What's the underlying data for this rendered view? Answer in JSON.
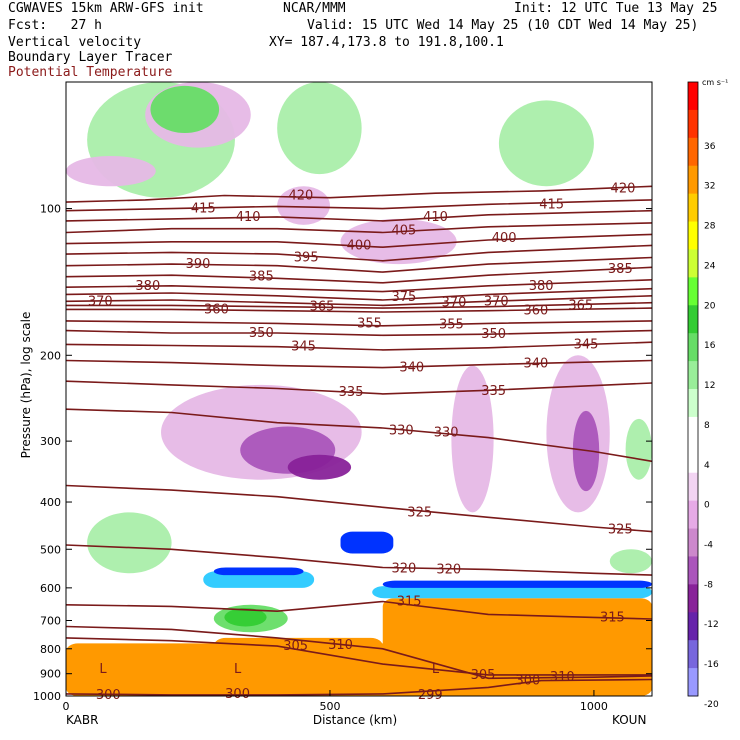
{
  "header": {
    "model": "CGWAVES 15km ARW-GFS init",
    "org": "NCAR/MMM",
    "init": "Init: 12 UTC Tue 13 May 25",
    "fcst": "Fcst:   27 h",
    "valid": "Valid: 15 UTC Wed 14 May 25 (10 CDT Wed 14 May 25)",
    "field1": "Vertical velocity",
    "field2": "Boundary Layer Tracer",
    "field3": "Potential Temperature",
    "xy": "XY= 187.4,173.8 to 191.8,100.1"
  },
  "colorbar": {
    "unit": "cm s⁻¹",
    "ticks": [
      36,
      32,
      28,
      24,
      20,
      16,
      12,
      8,
      4,
      0,
      -4,
      -8,
      -12,
      -16,
      -20
    ],
    "colors": [
      "#ff0000",
      "#ff3300",
      "#ff6600",
      "#ff9900",
      "#ffcc00",
      "#ffff00",
      "#ccff33",
      "#66ff33",
      "#33cc33",
      "#66dd66",
      "#99ee99",
      "#ccffcc",
      "#ffffff",
      "#ffffff",
      "#f2d4f2",
      "#e6aae6",
      "#cc88cc",
      "#aa55bb",
      "#882299",
      "#6622aa",
      "#7766dd",
      "#9999ff"
    ]
  },
  "chart_data": {
    "type": "cross-section",
    "title": "",
    "xlabel": "Distance (km)",
    "ylabel": "Pressure (hPa), log scale",
    "xlim": [
      0,
      1110
    ],
    "ylim": [
      1000,
      55
    ],
    "x_ticks": [
      0,
      500,
      1000
    ],
    "y_ticks": [
      100,
      200,
      300,
      400,
      500,
      600,
      700,
      800,
      900,
      1000
    ],
    "left_label": "KABR",
    "right_label": "KOUN",
    "theta_contours": [
      {
        "v": 420,
        "pts": [
          [
            0,
            97
          ],
          [
            150,
            96
          ],
          [
            300,
            94
          ],
          [
            500,
            95
          ],
          [
            700,
            93
          ],
          [
            900,
            92
          ],
          [
            1110,
            90
          ]
        ],
        "labels": [
          [
            445,
            94
          ],
          [
            1055,
            91
          ]
        ]
      },
      {
        "v": 415,
        "pts": [
          [
            0,
            101
          ],
          [
            200,
            100
          ],
          [
            400,
            99
          ],
          [
            600,
            100
          ],
          [
            800,
            98
          ],
          [
            1110,
            96
          ]
        ],
        "labels": [
          [
            260,
            100
          ],
          [
            920,
            98
          ]
        ]
      },
      {
        "v": 410,
        "pts": [
          [
            0,
            106
          ],
          [
            200,
            105
          ],
          [
            400,
            104
          ],
          [
            600,
            106
          ],
          [
            800,
            103
          ],
          [
            1110,
            101
          ]
        ],
        "labels": [
          [
            345,
            104
          ],
          [
            700,
            104
          ]
        ]
      },
      {
        "v": 405,
        "pts": [
          [
            0,
            112
          ],
          [
            200,
            110
          ],
          [
            400,
            110
          ],
          [
            600,
            112
          ],
          [
            800,
            109
          ],
          [
            1110,
            107
          ]
        ],
        "labels": [
          [
            640,
            111
          ]
        ]
      },
      {
        "v": 400,
        "pts": [
          [
            0,
            118
          ],
          [
            200,
            117
          ],
          [
            400,
            117
          ],
          [
            600,
            120
          ],
          [
            800,
            116
          ],
          [
            1110,
            113
          ]
        ],
        "labels": [
          [
            555,
            119
          ],
          [
            830,
            115
          ]
        ]
      },
      {
        "v": 395,
        "pts": [
          [
            0,
            124
          ],
          [
            200,
            123
          ],
          [
            400,
            124
          ],
          [
            600,
            128
          ],
          [
            800,
            123
          ],
          [
            1110,
            119
          ]
        ],
        "labels": [
          [
            455,
            126
          ]
        ]
      },
      {
        "v": 390,
        "pts": [
          [
            0,
            131
          ],
          [
            200,
            130
          ],
          [
            400,
            131
          ],
          [
            600,
            135
          ],
          [
            800,
            130
          ],
          [
            1110,
            126
          ]
        ],
        "labels": [
          [
            250,
            130
          ]
        ]
      },
      {
        "v": 385,
        "pts": [
          [
            0,
            138
          ],
          [
            200,
            137
          ],
          [
            400,
            139
          ],
          [
            600,
            142
          ],
          [
            800,
            137
          ],
          [
            1110,
            132
          ]
        ],
        "labels": [
          [
            370,
            138
          ],
          [
            1050,
            133
          ]
        ]
      },
      {
        "v": 380,
        "pts": [
          [
            0,
            145
          ],
          [
            200,
            144
          ],
          [
            400,
            146
          ],
          [
            600,
            148
          ],
          [
            800,
            144
          ],
          [
            1110,
            140
          ]
        ],
        "labels": [
          [
            155,
            144
          ],
          [
            900,
            144
          ]
        ]
      },
      {
        "v": 375,
        "pts": [
          [
            0,
            150
          ],
          [
            200,
            149
          ],
          [
            400,
            151
          ],
          [
            600,
            154
          ],
          [
            800,
            150
          ],
          [
            1110,
            146
          ]
        ],
        "labels": [
          [
            640,
            152
          ]
        ]
      },
      {
        "v": 370,
        "pts": [
          [
            0,
            155
          ],
          [
            200,
            154
          ],
          [
            400,
            156
          ],
          [
            600,
            158
          ],
          [
            800,
            155
          ],
          [
            1110,
            151
          ]
        ],
        "labels": [
          [
            65,
            155
          ],
          [
            735,
            156
          ],
          [
            815,
            155
          ]
        ]
      },
      {
        "v": 365,
        "pts": [
          [
            0,
            158
          ],
          [
            200,
            158
          ],
          [
            400,
            159
          ],
          [
            600,
            160
          ],
          [
            800,
            159
          ],
          [
            1110,
            156
          ]
        ],
        "labels": [
          [
            485,
            159
          ],
          [
            975,
            158
          ]
        ]
      },
      {
        "v": 360,
        "pts": [
          [
            0,
            161
          ],
          [
            200,
            161
          ],
          [
            400,
            162
          ],
          [
            600,
            163
          ],
          [
            800,
            162
          ],
          [
            1110,
            160
          ]
        ],
        "labels": [
          [
            285,
            161
          ],
          [
            890,
            162
          ]
        ]
      },
      {
        "v": 355,
        "pts": [
          [
            0,
            170
          ],
          [
            200,
            171
          ],
          [
            400,
            172
          ],
          [
            600,
            174
          ],
          [
            800,
            172
          ],
          [
            1110,
            170
          ]
        ],
        "labels": [
          [
            575,
            172
          ],
          [
            730,
            173
          ]
        ]
      },
      {
        "v": 350,
        "pts": [
          [
            0,
            178
          ],
          [
            200,
            180
          ],
          [
            400,
            180
          ],
          [
            600,
            182
          ],
          [
            800,
            181
          ],
          [
            1110,
            178
          ]
        ],
        "labels": [
          [
            370,
            180
          ],
          [
            810,
            181
          ]
        ]
      },
      {
        "v": 345,
        "pts": [
          [
            0,
            190
          ],
          [
            200,
            191
          ],
          [
            400,
            192
          ],
          [
            600,
            195
          ],
          [
            800,
            193
          ],
          [
            1110,
            188
          ]
        ],
        "labels": [
          [
            450,
            192
          ],
          [
            985,
            190
          ]
        ]
      },
      {
        "v": 340,
        "pts": [
          [
            0,
            205
          ],
          [
            200,
            207
          ],
          [
            400,
            210
          ],
          [
            600,
            212
          ],
          [
            800,
            209
          ],
          [
            1110,
            205
          ]
        ],
        "labels": [
          [
            655,
            212
          ],
          [
            890,
            208
          ]
        ]
      },
      {
        "v": 335,
        "pts": [
          [
            0,
            226
          ],
          [
            200,
            230
          ],
          [
            400,
            234
          ],
          [
            600,
            240
          ],
          [
            800,
            236
          ],
          [
            1110,
            228
          ]
        ],
        "labels": [
          [
            540,
            238
          ],
          [
            810,
            237
          ]
        ]
      },
      {
        "v": 330,
        "pts": [
          [
            0,
            258
          ],
          [
            200,
            262
          ],
          [
            400,
            275
          ],
          [
            600,
            282
          ],
          [
            800,
            295
          ],
          [
            1000,
            315
          ],
          [
            1110,
            330
          ]
        ],
        "labels": [
          [
            635,
            285
          ],
          [
            720,
            288
          ]
        ]
      },
      {
        "v": 325,
        "pts": [
          [
            0,
            370
          ],
          [
            200,
            378
          ],
          [
            400,
            390
          ],
          [
            600,
            410
          ],
          [
            800,
            430
          ],
          [
            1000,
            450
          ],
          [
            1110,
            460
          ]
        ],
        "labels": [
          [
            670,
            420
          ],
          [
            1050,
            455
          ]
        ]
      },
      {
        "v": 320,
        "pts": [
          [
            0,
            490
          ],
          [
            200,
            500
          ],
          [
            400,
            520
          ],
          [
            600,
            545
          ],
          [
            800,
            550
          ],
          [
            1000,
            560
          ],
          [
            1110,
            565
          ]
        ],
        "labels": [
          [
            640,
            548
          ],
          [
            725,
            550
          ]
        ]
      },
      {
        "v": 315,
        "pts": [
          [
            0,
            650
          ],
          [
            200,
            655
          ],
          [
            400,
            670
          ],
          [
            600,
            640
          ],
          [
            800,
            680
          ],
          [
            1000,
            690
          ],
          [
            1110,
            695
          ]
        ],
        "labels": [
          [
            650,
            640
          ],
          [
            1035,
            690
          ]
        ]
      },
      {
        "v": 310,
        "pts": [
          [
            0,
            720
          ],
          [
            200,
            730
          ],
          [
            400,
            760
          ],
          [
            600,
            800
          ],
          [
            800,
            920
          ],
          [
            1000,
            915
          ],
          [
            1110,
            910
          ]
        ],
        "labels": [
          [
            520,
            785
          ],
          [
            940,
            915
          ]
        ]
      },
      {
        "v": 305,
        "pts": [
          [
            0,
            760
          ],
          [
            200,
            770
          ],
          [
            400,
            790
          ],
          [
            600,
            860
          ],
          [
            800,
            905
          ],
          [
            1110,
            905
          ]
        ],
        "labels": [
          [
            435,
            790
          ],
          [
            790,
            905
          ]
        ]
      },
      {
        "v": 300,
        "pts": [
          [
            0,
            990
          ],
          [
            200,
            995
          ],
          [
            400,
            995
          ],
          [
            600,
            990
          ],
          [
            800,
            960
          ],
          [
            900,
            930
          ],
          [
            1110,
            925
          ]
        ],
        "labels": [
          [
            80,
            995
          ],
          [
            325,
            990
          ],
          [
            875,
            930
          ]
        ]
      }
    ],
    "trop_label": {
      "v": 299,
      "x": 690,
      "p": 995
    },
    "low_markers": [
      [
        70,
        880
      ],
      [
        325,
        880
      ],
      [
        700,
        880
      ]
    ],
    "w_regions": [
      {
        "x": [
          40,
          320
        ],
        "p": [
          55,
          95
        ],
        "w": 4
      },
      {
        "x": [
          150,
          350
        ],
        "p": [
          55,
          75
        ],
        "w": -4
      },
      {
        "x": [
          400,
          560
        ],
        "p": [
          55,
          85
        ],
        "w": 4
      },
      {
        "x": [
          820,
          1000
        ],
        "p": [
          60,
          90
        ],
        "w": 4
      },
      {
        "x": [
          160,
          290
        ],
        "p": [
          56,
          70
        ],
        "w": 8
      },
      {
        "x": [
          0,
          170
        ],
        "p": [
          78,
          90
        ],
        "w": -4
      },
      {
        "x": [
          400,
          500
        ],
        "p": [
          90,
          108
        ],
        "w": -4
      },
      {
        "x": [
          520,
          740
        ],
        "p": [
          105,
          130
        ],
        "w": -4
      },
      {
        "x": [
          180,
          560
        ],
        "p": [
          230,
          360
        ],
        "w": -4
      },
      {
        "x": [
          330,
          510
        ],
        "p": [
          280,
          350
        ],
        "w": -8
      },
      {
        "x": [
          420,
          540
        ],
        "p": [
          320,
          360
        ],
        "w": -12
      },
      {
        "x": [
          910,
          1030
        ],
        "p": [
          200,
          420
        ],
        "w": -4
      },
      {
        "x": [
          960,
          1010
        ],
        "p": [
          260,
          380
        ],
        "w": -8
      },
      {
        "x": [
          730,
          810
        ],
        "p": [
          210,
          420
        ],
        "w": -4
      },
      {
        "x": [
          1060,
          1110
        ],
        "p": [
          270,
          360
        ],
        "w": 4
      },
      {
        "x": [
          40,
          200
        ],
        "p": [
          420,
          560
        ],
        "w": 4
      },
      {
        "x": [
          280,
          420
        ],
        "p": [
          650,
          740
        ],
        "w": 8
      },
      {
        "x": [
          300,
          380
        ],
        "p": [
          660,
          720
        ],
        "w": 12
      },
      {
        "x": [
          1030,
          1110
        ],
        "p": [
          500,
          560
        ],
        "w": 4
      }
    ],
    "blt_regions": [
      {
        "x": [
          0,
          1110
        ],
        "p": [
          780,
          1000
        ],
        "c": "#ff9900"
      },
      {
        "x": [
          600,
          1110
        ],
        "p": [
          630,
          1000
        ],
        "c": "#ff9900"
      },
      {
        "x": [
          280,
          600
        ],
        "p": [
          760,
          1000
        ],
        "c": "#ff9900"
      },
      {
        "x": [
          580,
          1110
        ],
        "p": [
          595,
          630
        ],
        "c": "#33ccff"
      },
      {
        "x": [
          600,
          1110
        ],
        "p": [
          580,
          600
        ],
        "c": "#0033ff"
      },
      {
        "x": [
          260,
          470
        ],
        "p": [
          555,
          600
        ],
        "c": "#33ccff"
      },
      {
        "x": [
          280,
          450
        ],
        "p": [
          545,
          565
        ],
        "c": "#0033ff"
      },
      {
        "x": [
          520,
          620
        ],
        "p": [
          460,
          510
        ],
        "c": "#0033ff"
      }
    ]
  }
}
